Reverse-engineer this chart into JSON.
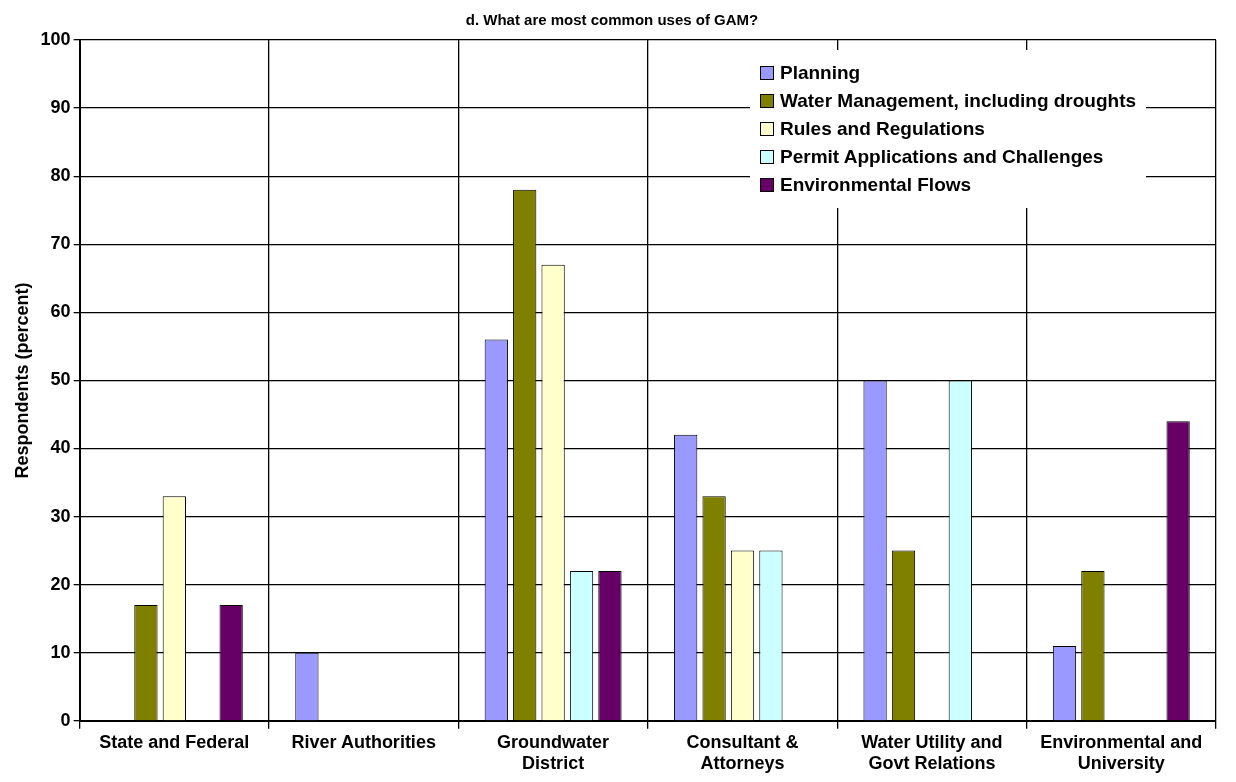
{
  "chart_data": {
    "type": "bar",
    "title": "d. What are most common uses of GAM?",
    "ylabel": "Respondents (percent)",
    "categories": [
      "State and Federal",
      "River Authorities",
      "Groundwater District",
      "Consultant & Attorneys",
      "Water Utility and Govt Relations",
      "Environmental and University"
    ],
    "series": [
      {
        "name": "Planning",
        "color": "#9999ff",
        "values": [
          0,
          10,
          56,
          42,
          50,
          11
        ]
      },
      {
        "name": "Water Management, including droughts",
        "color": "#808000",
        "values": [
          17,
          0,
          78,
          33,
          25,
          22
        ]
      },
      {
        "name": "Rules and Regulations",
        "color": "#ffffcc",
        "values": [
          33,
          0,
          67,
          25,
          0,
          0
        ]
      },
      {
        "name": "Permit Applications and Challenges",
        "color": "#ccffff",
        "values": [
          0,
          0,
          22,
          25,
          50,
          0
        ]
      },
      {
        "name": "Environmental Flows",
        "color": "#660066",
        "values": [
          17,
          0,
          22,
          0,
          0,
          44
        ]
      }
    ],
    "ylim": [
      0,
      100
    ],
    "yticks": [
      0,
      10,
      20,
      30,
      40,
      50,
      60,
      70,
      80,
      90,
      100
    ],
    "grid": true,
    "legend": "top right"
  }
}
